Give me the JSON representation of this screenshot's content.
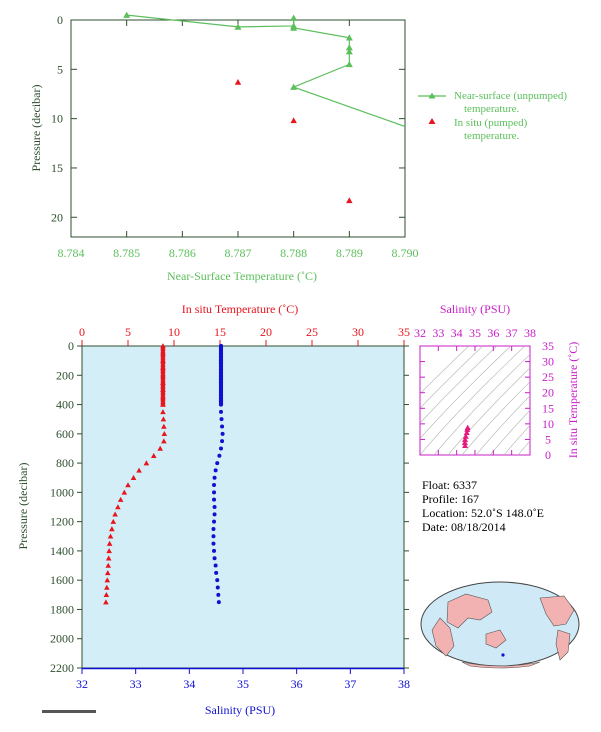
{
  "colors": {
    "green": "#5cbf5c",
    "axis_green": "#2f4f2f",
    "red": "#e8141e",
    "blue": "#1010d0",
    "magenta": "#c81ec8",
    "panel_bg": "#d4eef8",
    "land": "#f3b2b2",
    "ocean": "#cfeaf6"
  },
  "chart_data": [
    {
      "type": "scatter",
      "xlabel": "Near-Surface Temperature (˚C)",
      "ylabel": "Pressure (decibar)",
      "xlim": [
        8.784,
        8.79
      ],
      "ylim": [
        22,
        0
      ],
      "xticks": [
        "8.784",
        "8.785",
        "8.786",
        "8.787",
        "8.788",
        "8.789",
        "8.790"
      ],
      "yticks": [
        "0",
        "5",
        "10",
        "15",
        "20"
      ],
      "legend_position": "right",
      "series": [
        {
          "name": "Near-surface (unpumped) temperature.",
          "marker": "line-triangle",
          "points": [
            [
              8.785,
              -0.5
            ],
            [
              8.787,
              0.7
            ],
            [
              8.788,
              0.6
            ],
            [
              8.788,
              -0.2
            ],
            [
              8.788,
              0.8
            ],
            [
              8.789,
              1.8
            ],
            [
              8.789,
              2.8
            ],
            [
              8.789,
              3.2
            ],
            [
              8.789,
              4.5
            ],
            [
              8.788,
              6.8
            ],
            [
              8.79,
              10.8
            ]
          ]
        },
        {
          "name": "In situ (pumped) temperature.",
          "marker": "triangle",
          "points": [
            [
              8.787,
              6.3
            ],
            [
              8.788,
              10.2
            ],
            [
              8.789,
              18.3
            ]
          ]
        }
      ]
    },
    {
      "type": "scatter",
      "ylabel": "Pressure (decibar)",
      "top_axis_label": "In situ Temperature (˚C)",
      "bottom_axis_label": "Salinity (PSU)",
      "temperature_range": [
        0,
        35
      ],
      "salinity_range": [
        32,
        38
      ],
      "pressure_range": [
        2200,
        0
      ],
      "temperature_ticks": [
        "0",
        "5",
        "10",
        "15",
        "20",
        "25",
        "30",
        "35"
      ],
      "salinity_ticks": [
        "32",
        "33",
        "34",
        "35",
        "36",
        "37",
        "38"
      ],
      "pressure_ticks": [
        "0",
        "200",
        "400",
        "600",
        "800",
        "1000",
        "1200",
        "1400",
        "1600",
        "1800",
        "2000",
        "2200"
      ],
      "series": [
        {
          "name": "In situ Temperature",
          "marker": "triangle",
          "pressure": [
            0,
            50,
            100,
            150,
            200,
            250,
            300,
            350,
            400,
            450,
            500,
            550,
            600,
            650,
            700,
            750,
            800,
            850,
            900,
            950,
            1000,
            1050,
            1100,
            1150,
            1200,
            1250,
            1300,
            1350,
            1400,
            1450,
            1500,
            1550,
            1600,
            1650,
            1700,
            1750
          ],
          "values": [
            8.8,
            8.8,
            8.8,
            8.8,
            8.8,
            8.8,
            8.8,
            8.8,
            8.8,
            8.8,
            8.85,
            8.9,
            8.95,
            8.9,
            8.5,
            7.8,
            7.0,
            6.2,
            5.6,
            5.0,
            4.6,
            4.2,
            3.9,
            3.6,
            3.4,
            3.25,
            3.1,
            3.0,
            2.95,
            2.9,
            2.85,
            2.8,
            2.75,
            2.7,
            2.65,
            2.6
          ]
        },
        {
          "name": "Salinity",
          "marker": "dot",
          "pressure": [
            0,
            50,
            100,
            150,
            200,
            250,
            300,
            350,
            400,
            450,
            500,
            550,
            600,
            650,
            700,
            750,
            800,
            850,
            900,
            950,
            1000,
            1050,
            1100,
            1150,
            1200,
            1250,
            1300,
            1350,
            1400,
            1450,
            1500,
            1550,
            1600,
            1650,
            1700,
            1750
          ],
          "values": [
            34.59,
            34.59,
            34.59,
            34.59,
            34.59,
            34.59,
            34.59,
            34.59,
            34.59,
            34.59,
            34.6,
            34.61,
            34.62,
            34.61,
            34.59,
            34.56,
            34.52,
            34.49,
            34.47,
            34.46,
            34.46,
            34.46,
            34.47,
            34.47,
            34.46,
            34.45,
            34.45,
            34.45,
            34.46,
            34.47,
            34.49,
            34.5,
            34.52,
            34.53,
            34.54,
            34.55
          ]
        }
      ]
    },
    {
      "type": "scatter",
      "title": "Salinity (PSU)",
      "ylabel": "In situ Temperature (˚C)",
      "xlim": [
        32,
        38
      ],
      "ylim": [
        0,
        35
      ],
      "xticks": [
        "32",
        "33",
        "34",
        "35",
        "36",
        "37",
        "38"
      ],
      "yticks": [
        "0",
        "5",
        "10",
        "15",
        "20",
        "25",
        "30",
        "35"
      ],
      "points": [
        [
          34.46,
          3.0
        ],
        [
          34.45,
          4.0
        ],
        [
          34.46,
          5.0
        ],
        [
          34.5,
          6.0
        ],
        [
          34.55,
          7.2
        ],
        [
          34.58,
          8.2
        ],
        [
          34.6,
          8.8
        ]
      ]
    }
  ],
  "info": {
    "float": "Float:  6337",
    "profile": "Profile:  167",
    "location": "Location:  52.0˚S  148.0˚E",
    "date": "Date:  08/18/2014"
  }
}
